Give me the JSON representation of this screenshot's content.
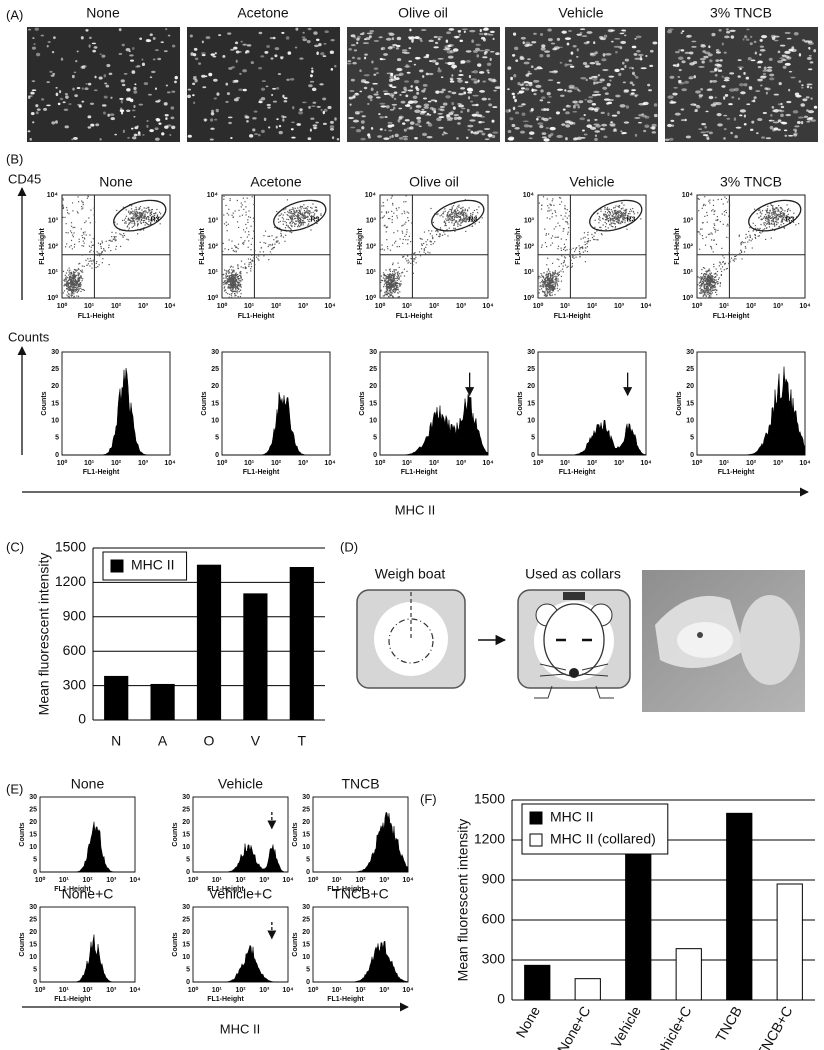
{
  "panel_a": {
    "label": "(A)",
    "titles": [
      "None",
      "Acetone",
      "Olive oil",
      "Vehicle",
      "3% TNCB"
    ]
  },
  "panel_b": {
    "label": "(B)",
    "cd45_label": "CD45",
    "counts_label": "Counts",
    "titles": [
      "None",
      "Acetone",
      "Olive oil",
      "Vehicle",
      "3% TNCB"
    ],
    "gate": "R3",
    "dot_x_label": "FL1-Height",
    "dot_y_label": "FL4-Height",
    "hist_x_label": "FL1-Height",
    "hist_y_label": "Counts",
    "log_ticks": [
      "10⁰",
      "10¹",
      "10²",
      "10³",
      "10⁴"
    ],
    "count_ticks": [
      0,
      5,
      10,
      15,
      20,
      25,
      30
    ],
    "axis_label": "MHC II"
  },
  "panel_c": {
    "label": "(C)"
  },
  "panel_d": {
    "label": "(D)",
    "step1": "Weigh boat",
    "step2": "Used as collars"
  },
  "panel_e": {
    "label": "(E)",
    "titles": [
      "None",
      "Vehicle",
      "TNCB",
      "None+C",
      "Vehicle+C",
      "TNCB+C"
    ],
    "hist_x_label": "FL1-Height",
    "hist_y_label": "Counts",
    "log_ticks": [
      "10⁰",
      "10¹",
      "10²",
      "10³",
      "10⁴"
    ],
    "count_ticks": [
      0,
      5,
      10,
      15,
      20,
      25,
      30
    ],
    "axis_label": "MHC II"
  },
  "panel_f": {
    "label": "(F)"
  },
  "chart_data": [
    {
      "type": "bar",
      "y_label": "Mean fluorescent intensity",
      "categories": [
        "N",
        "A",
        "O",
        "V",
        "T"
      ],
      "series": [
        {
          "name": "MHC II",
          "color": "#000000",
          "values": [
            380,
            310,
            1350,
            1100,
            1330
          ]
        }
      ],
      "ylim": [
        0,
        1500
      ],
      "yticks": [
        0,
        300,
        600,
        900,
        1200,
        1500
      ],
      "grid": true,
      "legend": "upper left"
    },
    {
      "type": "bar",
      "y_label": "Mean fluorescent intensity",
      "categories": [
        "None",
        "None+C",
        "Vehicle",
        "Vehicle+C",
        "TNCB",
        "TNCB+C"
      ],
      "series": [
        {
          "name": "MHC II",
          "color": "#000000",
          "values": [
            260,
            null,
            1100,
            null,
            1400,
            null
          ]
        },
        {
          "name": "MHC II (collared)",
          "color": "#ffffff",
          "values": [
            null,
            160,
            null,
            385,
            null,
            870
          ]
        }
      ],
      "ylim": [
        0,
        1500
      ],
      "yticks": [
        0,
        300,
        600,
        900,
        1200,
        1500
      ],
      "grid": true,
      "legend": "upper left"
    }
  ]
}
